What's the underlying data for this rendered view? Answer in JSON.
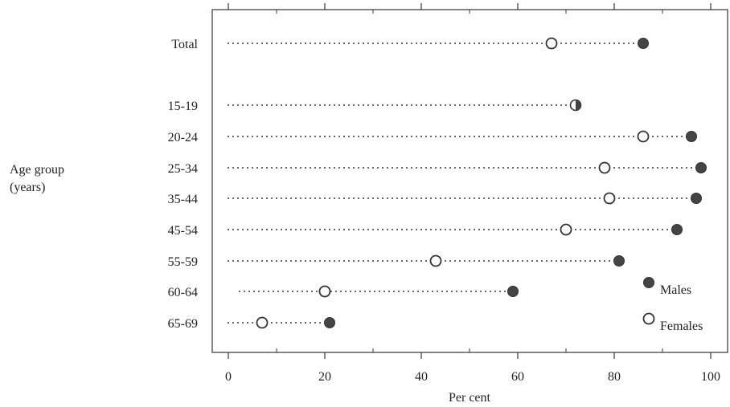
{
  "chart_data": {
    "type": "scatter",
    "variant": "dot-plot",
    "title": "",
    "xlabel": "Per cent",
    "ylabel_lines": [
      "Age group",
      "(years)"
    ],
    "xlim": [
      0,
      100
    ],
    "xticks": [
      "0",
      "20",
      "40",
      "60",
      "80",
      "100"
    ],
    "categories": [
      "Total",
      "15-19",
      "20-24",
      "25-34",
      "35-44",
      "45-54",
      "55-59",
      "60-64",
      "65-69"
    ],
    "series": [
      {
        "name": "Males",
        "marker": "filled-circle",
        "color": "#444444",
        "values": [
          86,
          72,
          96,
          98,
          97,
          93,
          81,
          59,
          21
        ]
      },
      {
        "name": "Females",
        "marker": "open-circle",
        "color": "#ffffff",
        "values": [
          67,
          72,
          86,
          78,
          79,
          70,
          43,
          20,
          7
        ]
      }
    ],
    "legend": {
      "placement": "bottom-right",
      "entries": [
        "Males",
        "Females"
      ]
    },
    "grid": false
  }
}
